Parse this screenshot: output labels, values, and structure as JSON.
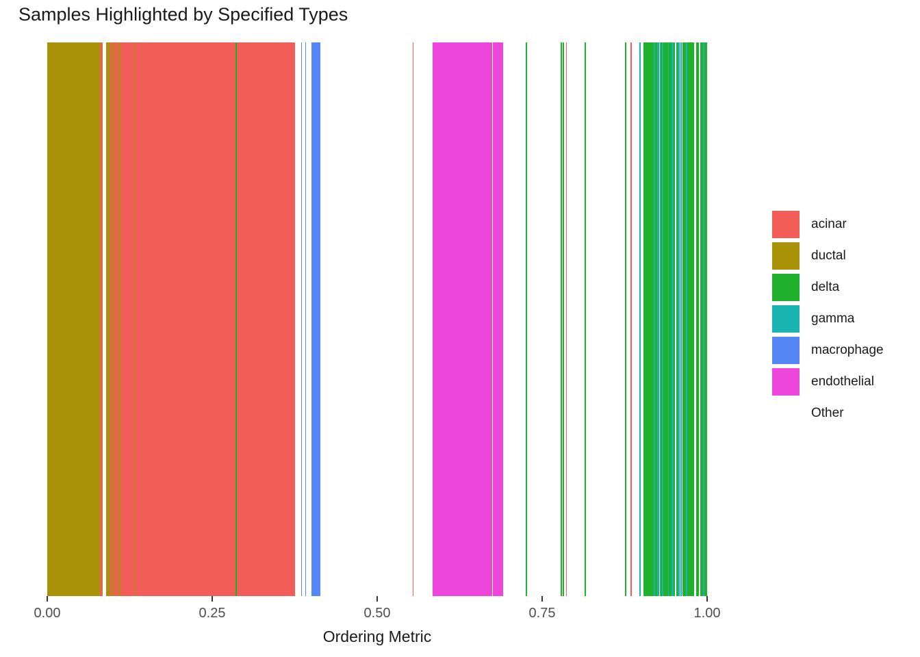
{
  "title": "Samples Highlighted by Specified Types",
  "x_axis": {
    "label": "Ordering Metric"
  },
  "legend": {
    "items": [
      {
        "label": "acinar",
        "color": "#F25D58"
      },
      {
        "label": "ductal",
        "color": "#A99208"
      },
      {
        "label": "delta",
        "color": "#20B12C"
      },
      {
        "label": "gamma",
        "color": "#19B3B1"
      },
      {
        "label": "macrophage",
        "color": "#5487F5"
      },
      {
        "label": "endothelial",
        "color": "#EE46DC"
      },
      {
        "label": "Other",
        "color": null
      }
    ]
  },
  "chart_data": {
    "type": "strip",
    "title": "Samples Highlighted by Specified Types",
    "xlabel": "Ordering Metric",
    "xlim": [
      0,
      1
    ],
    "x_ticks": [
      0,
      0.25,
      0.5,
      0.75,
      1
    ],
    "x_tick_labels": [
      "0.00",
      "0.25",
      "0.50",
      "0.75",
      "1.00"
    ],
    "legend_position": "right",
    "grid": false,
    "colors": {
      "acinar": "#F25D58",
      "ductal": "#A99208",
      "delta": "#20B12C",
      "gamma": "#19B3B1",
      "macrophage": "#5487F5",
      "endothelial": "#EE46DC"
    },
    "stripes": [
      [
        0.0,
        0.0799,
        "ductal"
      ],
      [
        0.0799,
        0.0825,
        "acinar"
      ],
      [
        0.0825,
        0.0845,
        "ductal"
      ],
      [
        0.0892,
        0.0944,
        "ductal"
      ],
      [
        0.0944,
        0.0968,
        "acinar"
      ],
      [
        0.0968,
        0.0985,
        "ductal"
      ],
      [
        0.0985,
        0.1006,
        "acinar"
      ],
      [
        0.1006,
        0.102,
        "ductal"
      ],
      [
        0.102,
        0.1048,
        "acinar"
      ],
      [
        0.1048,
        0.1061,
        "ductal"
      ],
      [
        0.1061,
        0.1089,
        "acinar"
      ],
      [
        0.1089,
        0.1107,
        "ductal"
      ],
      [
        0.1107,
        0.1325,
        "acinar"
      ],
      [
        0.1325,
        0.1338,
        "ductal"
      ],
      [
        0.1338,
        0.2853,
        "acinar"
      ],
      [
        0.2853,
        0.2873,
        "delta"
      ],
      [
        0.2873,
        0.3755,
        "acinar"
      ],
      [
        0.3849,
        0.3862,
        "macrophage"
      ],
      [
        0.3911,
        0.3925,
        "macrophage"
      ],
      [
        0.4004,
        0.4134,
        "macrophage"
      ],
      [
        0.5539,
        0.5555,
        "acinar"
      ],
      [
        0.584,
        0.6732,
        "endothelial"
      ],
      [
        0.6732,
        0.6748,
        "acinar"
      ],
      [
        0.6748,
        0.6909,
        "endothelial"
      ],
      [
        0.7251,
        0.7269,
        "delta"
      ],
      [
        0.7785,
        0.7801,
        "delta"
      ],
      [
        0.7811,
        0.7827,
        "delta"
      ],
      [
        0.7858,
        0.7873,
        "acinar"
      ],
      [
        0.8148,
        0.8164,
        "delta"
      ],
      [
        0.876,
        0.8776,
        "delta"
      ],
      [
        0.8838,
        0.8854,
        "acinar"
      ],
      [
        0.8978,
        0.8994,
        "gamma"
      ],
      [
        0.9036,
        0.9186,
        "delta"
      ],
      [
        0.9186,
        0.9212,
        "gamma"
      ],
      [
        0.9212,
        0.9238,
        "delta"
      ],
      [
        0.9238,
        0.9259,
        "gamma"
      ],
      [
        0.9259,
        0.9279,
        "delta"
      ],
      [
        0.9279,
        0.929,
        "gamma"
      ],
      [
        0.929,
        0.9315,
        "delta"
      ],
      [
        0.9315,
        0.9341,
        "gamma"
      ],
      [
        0.9341,
        0.9404,
        "delta"
      ],
      [
        0.9404,
        0.9424,
        "gamma"
      ],
      [
        0.9424,
        0.9456,
        "delta"
      ],
      [
        0.9456,
        0.9487,
        "gamma"
      ],
      [
        0.9487,
        0.9513,
        "delta"
      ],
      [
        0.9528,
        0.9554,
        "delta"
      ],
      [
        0.9554,
        0.958,
        "gamma"
      ],
      [
        0.9595,
        0.9616,
        "gamma"
      ],
      [
        0.963,
        0.9678,
        "delta"
      ],
      [
        0.9678,
        0.9699,
        "gamma"
      ],
      [
        0.9699,
        0.9803,
        "delta"
      ],
      [
        0.9829,
        0.988,
        "delta"
      ],
      [
        0.9899,
        0.9938,
        "delta"
      ],
      [
        0.9938,
        0.9958,
        "gamma"
      ],
      [
        0.9958,
        1.0,
        "delta"
      ]
    ]
  }
}
